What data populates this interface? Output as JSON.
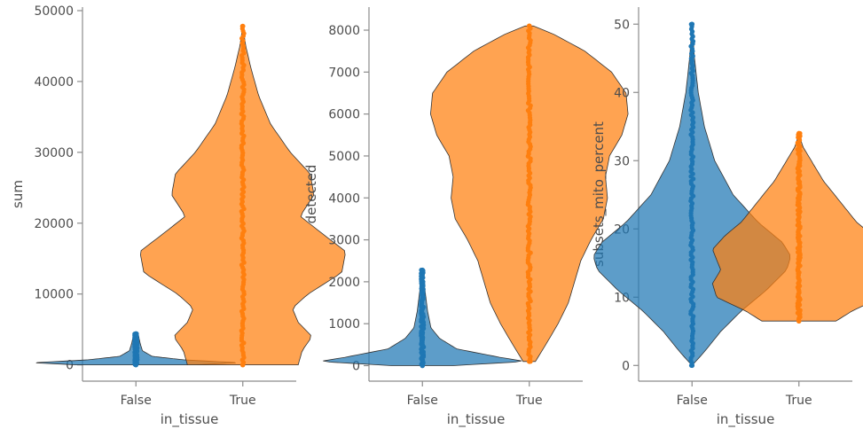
{
  "chart_data": [
    {
      "type": "violin",
      "xlabel": "in_tissue",
      "ylabel": "sum",
      "categories": [
        "False",
        "True"
      ],
      "ylim": [
        -2300,
        50500
      ],
      "yticks": [
        0,
        10000,
        20000,
        30000,
        40000,
        50000
      ],
      "ytick_labels": [
        "0",
        "10000",
        "20000",
        "30000",
        "40000",
        "50000"
      ],
      "series": [
        {
          "category": "False",
          "color": "#1f77b4",
          "min": 0,
          "max": 4400,
          "density": [
            [
              0,
              0.55
            ],
            [
              300,
              0.95
            ],
            [
              700,
              0.45
            ],
            [
              1200,
              0.15
            ],
            [
              2000,
              0.06
            ],
            [
              3000,
              0.04
            ],
            [
              4400,
              0.02
            ]
          ]
        },
        {
          "category": "True",
          "color": "#ff7f0e",
          "min": 0,
          "max": 47800,
          "density": [
            [
              0,
              0.28
            ],
            [
              2000,
              0.3
            ],
            [
              4000,
              0.35
            ],
            [
              6000,
              0.28
            ],
            [
              8000,
              0.25
            ],
            [
              10000,
              0.33
            ],
            [
              13000,
              0.5
            ],
            [
              16000,
              0.52
            ],
            [
              19000,
              0.38
            ],
            [
              21000,
              0.29
            ],
            [
              24000,
              0.36
            ],
            [
              27000,
              0.34
            ],
            [
              30000,
              0.24
            ],
            [
              34000,
              0.14
            ],
            [
              38000,
              0.08
            ],
            [
              42000,
              0.04
            ],
            [
              45000,
              0.015
            ],
            [
              47800,
              0.0
            ]
          ]
        }
      ]
    },
    {
      "type": "violin",
      "xlabel": "in_tissue",
      "ylabel": "detected",
      "categories": [
        "False",
        "True"
      ],
      "ylim": [
        -370,
        8550
      ],
      "yticks": [
        0,
        1000,
        2000,
        3000,
        4000,
        5000,
        6000,
        7000,
        8000
      ],
      "ytick_labels": [
        "0",
        "1000",
        "2000",
        "3000",
        "4000",
        "5000",
        "6000",
        "7000",
        "8000"
      ],
      "series": [
        {
          "category": "False",
          "color": "#1f77b4",
          "min": 0,
          "max": 2280,
          "density": [
            [
              0,
              0.18
            ],
            [
              100,
              0.6
            ],
            [
              200,
              0.45
            ],
            [
              400,
              0.2
            ],
            [
              650,
              0.1
            ],
            [
              900,
              0.05
            ],
            [
              1300,
              0.03
            ],
            [
              1800,
              0.015
            ],
            [
              2280,
              0.0
            ]
          ]
        },
        {
          "category": "True",
          "color": "#ff7f0e",
          "min": 100,
          "max": 8100,
          "density": [
            [
              100,
              0.03
            ],
            [
              500,
              0.08
            ],
            [
              1000,
              0.14
            ],
            [
              1500,
              0.19
            ],
            [
              2000,
              0.22
            ],
            [
              2500,
              0.25
            ],
            [
              3000,
              0.3
            ],
            [
              3500,
              0.36
            ],
            [
              4000,
              0.38
            ],
            [
              4500,
              0.37
            ],
            [
              5000,
              0.39
            ],
            [
              5500,
              0.45
            ],
            [
              6000,
              0.48
            ],
            [
              6500,
              0.47
            ],
            [
              7000,
              0.4
            ],
            [
              7500,
              0.27
            ],
            [
              7900,
              0.12
            ],
            [
              8100,
              0.02
            ]
          ]
        }
      ]
    },
    {
      "type": "violin",
      "xlabel": "in_tissue",
      "ylabel": "subsets_mito_percent",
      "categories": [
        "False",
        "True"
      ],
      "ylim": [
        -2.3,
        52.5
      ],
      "yticks": [
        0,
        10,
        20,
        30,
        40,
        50
      ],
      "ytick_labels": [
        "0",
        "10",
        "20",
        "30",
        "40",
        "50"
      ],
      "series": [
        {
          "category": "False",
          "color": "#1f77b4",
          "min": 0,
          "max": 50,
          "density": [
            [
              0,
              0.0
            ],
            [
              2,
              0.06
            ],
            [
              5,
              0.14
            ],
            [
              8,
              0.24
            ],
            [
              11,
              0.36
            ],
            [
              14,
              0.46
            ],
            [
              16,
              0.48
            ],
            [
              18,
              0.44
            ],
            [
              21,
              0.32
            ],
            [
              25,
              0.2
            ],
            [
              30,
              0.11
            ],
            [
              35,
              0.06
            ],
            [
              40,
              0.03
            ],
            [
              45,
              0.012
            ],
            [
              50,
              0.0
            ]
          ]
        },
        {
          "category": "True",
          "color": "#ff7f0e",
          "min": 6.5,
          "max": 34,
          "density": [
            [
              6.5,
              0.18
            ],
            [
              8,
              0.26
            ],
            [
              10,
              0.4
            ],
            [
              12,
              0.42
            ],
            [
              14,
              0.38
            ],
            [
              15.5,
              0.4
            ],
            [
              17,
              0.42
            ],
            [
              19,
              0.36
            ],
            [
              21,
              0.28
            ],
            [
              24,
              0.2
            ],
            [
              27,
              0.12
            ],
            [
              30,
              0.06
            ],
            [
              32,
              0.02
            ],
            [
              34,
              0.0
            ]
          ]
        }
      ]
    }
  ]
}
